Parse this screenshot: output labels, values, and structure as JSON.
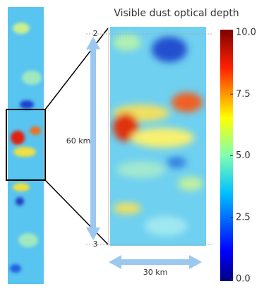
{
  "title": "Visible dust optical depth",
  "colorbar": {
    "ticks": [
      "10.0",
      "7.5",
      "5.0",
      "2.5",
      "0.0"
    ]
  },
  "scale": {
    "vertical": "60 km",
    "horizontal": "30 km",
    "top_marker": "2",
    "bottom_marker": "3"
  }
}
